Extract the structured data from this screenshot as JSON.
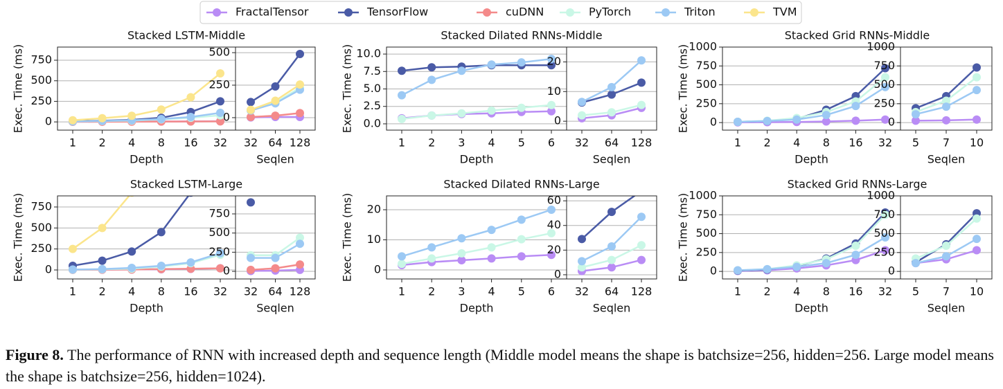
{
  "legend": [
    {
      "name": "FractalTensor",
      "color": "#b98cf5"
    },
    {
      "name": "TensorFlow",
      "color": "#4a5ba6"
    },
    {
      "name": "cuDNN",
      "color": "#f48a8a"
    },
    {
      "name": "PyTorch",
      "color": "#c9f7e6"
    },
    {
      "name": "Triton",
      "color": "#9cc9f4"
    },
    {
      "name": "TVM",
      "color": "#fbe58c"
    }
  ],
  "chart_data": [
    {
      "type": "line",
      "title": "Stacked LSTM-Middle",
      "xlabel": "Depth",
      "ylabel": "Exec. Time (ms)",
      "categories": [
        "1",
        "2",
        "4",
        "8",
        "16",
        "32"
      ],
      "ylim": [
        -100,
        910
      ],
      "yticks": [
        0,
        250,
        500,
        750
      ],
      "grid": true,
      "series": [
        {
          "values": [
            2,
            3,
            4,
            5,
            6,
            8
          ]
        },
        {
          "values": [
            8,
            15,
            25,
            50,
            120,
            250
          ]
        },
        {
          "values": [
            1,
            2,
            3,
            4,
            5,
            6
          ]
        },
        {
          "values": [
            5,
            10,
            15,
            30,
            50,
            80
          ]
        },
        {
          "values": [
            5,
            12,
            20,
            35,
            60,
            110
          ]
        },
        {
          "values": [
            20,
            45,
            75,
            150,
            300,
            590
          ]
        }
      ]
    },
    {
      "type": "line",
      "xlabel": "Seqlen",
      "categories": [
        "32",
        "64",
        "128"
      ],
      "ylim": [
        -96,
        543
      ],
      "yticks": [
        0,
        250,
        500
      ],
      "grid": true,
      "series": [
        {
          "values": [
            2,
            5,
            5
          ]
        },
        {
          "values": [
            120,
            240,
            490
          ]
        },
        {
          "values": [
            5,
            15,
            35
          ]
        },
        {
          "values": [
            55,
            115,
            230
          ]
        },
        {
          "values": [
            55,
            110,
            215
          ]
        },
        {
          "values": [
            60,
            130,
            255
          ]
        }
      ]
    },
    {
      "type": "line",
      "title": "Stacked Dilated RNNs-Middle",
      "xlabel": "Depth",
      "ylabel": "Exec. Time (ms)",
      "categories": [
        "1",
        "2",
        "3",
        "4",
        "5",
        "6"
      ],
      "ylim": [
        -0.9,
        11
      ],
      "yticks": [
        {
          "value": 0,
          "label": "0.0"
        },
        2.5,
        {
          "value": 5,
          "label": "5.0"
        },
        7.5,
        {
          "value": 10,
          "label": "10.0"
        }
      ],
      "grid": true,
      "series": [
        {
          "values": [
            0.8,
            1.2,
            1.4,
            1.5,
            1.7,
            1.8
          ]
        },
        {
          "values": [
            7.6,
            8.1,
            8.2,
            8.4,
            8.4,
            8.4
          ]
        },
        {
          "values": [
            null,
            null,
            null,
            null,
            null,
            null
          ]
        },
        {
          "values": [
            0.7,
            1.2,
            1.5,
            1.9,
            2.3,
            2.7
          ]
        },
        {
          "values": [
            4.1,
            6.3,
            7.6,
            8.5,
            8.8,
            9.3
          ]
        },
        {
          "values": [
            null,
            null,
            null,
            null,
            null,
            null
          ]
        }
      ]
    },
    {
      "type": "line",
      "xlabel": "Seqlen",
      "categories": [
        "32",
        "64",
        "128"
      ],
      "ylim": [
        -3,
        25
      ],
      "yticks": [
        0,
        10,
        20
      ],
      "grid": true,
      "series": [
        {
          "values": [
            1,
            2,
            4.5
          ]
        },
        {
          "values": [
            6.3,
            9,
            13
          ]
        },
        {
          "values": [
            null,
            null,
            null
          ]
        },
        {
          "values": [
            2,
            3,
            5.5
          ]
        },
        {
          "values": [
            6.5,
            11.5,
            20.5
          ]
        },
        {
          "values": [
            null,
            null,
            null
          ]
        }
      ]
    },
    {
      "type": "line",
      "title": "Stacked Grid RNNs-Middle",
      "xlabel": "Depth",
      "ylabel": "Exec. Time (ms)",
      "categories": [
        "1",
        "2",
        "4",
        "8",
        "16",
        "32"
      ],
      "ylim": [
        -100,
        1000
      ],
      "yticks": [
        0,
        250,
        500,
        750,
        1000
      ],
      "grid": true,
      "series": [
        {
          "values": [
            3,
            5,
            8,
            15,
            25,
            40
          ]
        },
        {
          "values": [
            10,
            20,
            50,
            170,
            350,
            720
          ]
        },
        {
          "values": [
            null,
            null,
            null,
            null,
            null,
            null
          ]
        },
        {
          "values": [
            10,
            25,
            60,
            140,
            280,
            600
          ]
        },
        {
          "values": [
            10,
            20,
            40,
            100,
            220,
            470
          ]
        },
        {
          "values": [
            null,
            null,
            null,
            null,
            null,
            null
          ]
        }
      ]
    },
    {
      "type": "line",
      "xlabel": "Seqlen",
      "categories": [
        "5",
        "7",
        "10"
      ],
      "ylim": [
        -100,
        1000
      ],
      "yticks": [
        0,
        250,
        500,
        750,
        1000
      ],
      "grid": true,
      "series": [
        {
          "values": [
            25,
            30,
            40
          ]
        },
        {
          "values": [
            190,
            350,
            730
          ]
        },
        {
          "values": [
            null,
            null,
            null
          ]
        },
        {
          "values": [
            140,
            290,
            600
          ]
        },
        {
          "values": [
            110,
            210,
            430
          ]
        },
        {
          "values": [
            null,
            null,
            null
          ]
        }
      ]
    },
    {
      "type": "line",
      "title": "Stacked LSTM-Large",
      "xlabel": "Depth",
      "ylabel": "Exec. Time (ms)",
      "categories": [
        "1",
        "2",
        "4",
        "8",
        "16",
        "32"
      ],
      "ylim": [
        -107,
        882
      ],
      "yticks": [
        0,
        250,
        500,
        750
      ],
      "grid": true,
      "series": [
        {
          "values": [
            2,
            3,
            5,
            8,
            12,
            20
          ]
        },
        {
          "values": [
            50,
            110,
            220,
            450,
            920,
            null
          ]
        },
        {
          "values": [
            1,
            3,
            5,
            10,
            15,
            20
          ]
        },
        {
          "values": [
            3,
            8,
            15,
            40,
            80,
            180
          ]
        },
        {
          "values": [
            5,
            10,
            25,
            50,
            90,
            200
          ]
        },
        {
          "values": [
            250,
            500,
            920,
            null,
            null,
            null
          ]
        }
      ]
    },
    {
      "type": "line",
      "xlabel": "Seqlen",
      "categories": [
        "32",
        "64",
        "128"
      ],
      "ylim": [
        -99,
        985
      ],
      "yticks": [
        0,
        250,
        500,
        750
      ],
      "grid": true,
      "series": [
        {
          "values": [
            5,
            10,
            20
          ]
        },
        {
          "values": [
            900,
            null,
            null
          ]
        },
        {
          "values": [
            20,
            40,
            90
          ]
        },
        {
          "values": [
            210,
            210,
            440
          ]
        },
        {
          "values": [
            175,
            175,
            360
          ]
        },
        {
          "values": [
            null,
            null,
            null
          ]
        }
      ]
    },
    {
      "type": "line",
      "title": "Stacked Dilated RNNs-Large",
      "xlabel": "Depth",
      "ylabel": "Exec. Time (ms)",
      "categories": [
        "1",
        "2",
        "3",
        "4",
        "5",
        "6"
      ],
      "ylim": [
        -3,
        24.6
      ],
      "yticks": [
        0,
        10,
        20
      ],
      "grid": true,
      "series": [
        {
          "values": [
            1.6,
            2.6,
            3.2,
            3.8,
            4.5,
            5
          ]
        },
        {
          "values": [
            null,
            null,
            null,
            null,
            null,
            null
          ]
        },
        {
          "values": [
            null,
            null,
            null,
            null,
            null,
            null
          ]
        },
        {
          "values": [
            2,
            3.8,
            5.5,
            7.5,
            10.2,
            12.2
          ]
        },
        {
          "values": [
            4.5,
            7.5,
            10.5,
            13.3,
            16.7,
            20
          ]
        },
        {
          "values": [
            null,
            null,
            null,
            null,
            null,
            null
          ]
        }
      ]
    },
    {
      "type": "line",
      "xlabel": "Seqlen",
      "categories": [
        "32",
        "64",
        "128"
      ],
      "ylim": [
        -3.4,
        64
      ],
      "yticks": [
        0,
        20,
        40,
        60
      ],
      "grid": true,
      "series": [
        {
          "values": [
            3,
            6,
            12
          ]
        },
        {
          "values": [
            29,
            51,
            68
          ]
        },
        {
          "values": [
            null,
            null,
            null
          ]
        },
        {
          "values": [
            6,
            12,
            24
          ]
        },
        {
          "values": [
            11,
            23,
            47
          ]
        },
        {
          "values": [
            null,
            null,
            null
          ]
        }
      ]
    },
    {
      "type": "line",
      "title": "Stacked Grid RNNs-Large",
      "xlabel": "Depth",
      "ylabel": "Exec. Time (ms)",
      "categories": [
        "1",
        "2",
        "4",
        "8",
        "16",
        "32"
      ],
      "ylim": [
        -100,
        1000
      ],
      "yticks": [
        0,
        250,
        500,
        750,
        1000
      ],
      "grid": true,
      "series": [
        {
          "values": [
            5,
            15,
            40,
            80,
            150,
            280
          ]
        },
        {
          "values": [
            10,
            25,
            70,
            170,
            370,
            780
          ]
        },
        {
          "values": [
            null,
            null,
            null,
            null,
            null,
            null
          ]
        },
        {
          "values": [
            15,
            30,
            80,
            160,
            340,
            750
          ]
        },
        {
          "values": [
            15,
            30,
            60,
            110,
            220,
            450
          ]
        },
        {
          "values": [
            null,
            null,
            null,
            null,
            null,
            null
          ]
        }
      ]
    },
    {
      "type": "line",
      "xlabel": "Seqlen",
      "categories": [
        "5",
        "7",
        "10"
      ],
      "ylim": [
        -100,
        1000
      ],
      "yticks": [
        0,
        250,
        500,
        750,
        1000
      ],
      "grid": true,
      "series": [
        {
          "values": [
            110,
            160,
            280
          ]
        },
        {
          "values": [
            120,
            360,
            770
          ]
        },
        {
          "values": [
            null,
            null,
            null
          ]
        },
        {
          "values": [
            170,
            340,
            700
          ]
        },
        {
          "values": [
            110,
            200,
            430
          ]
        },
        {
          "values": [
            null,
            null,
            null
          ]
        }
      ]
    }
  ],
  "caption": {
    "label": "Figure 8.",
    "text": "The performance of RNN with increased depth and sequence length (Middle model means the shape is batchsize=256, hidden=256. Large model means the shape is batchsize=256, hidden=1024)."
  }
}
